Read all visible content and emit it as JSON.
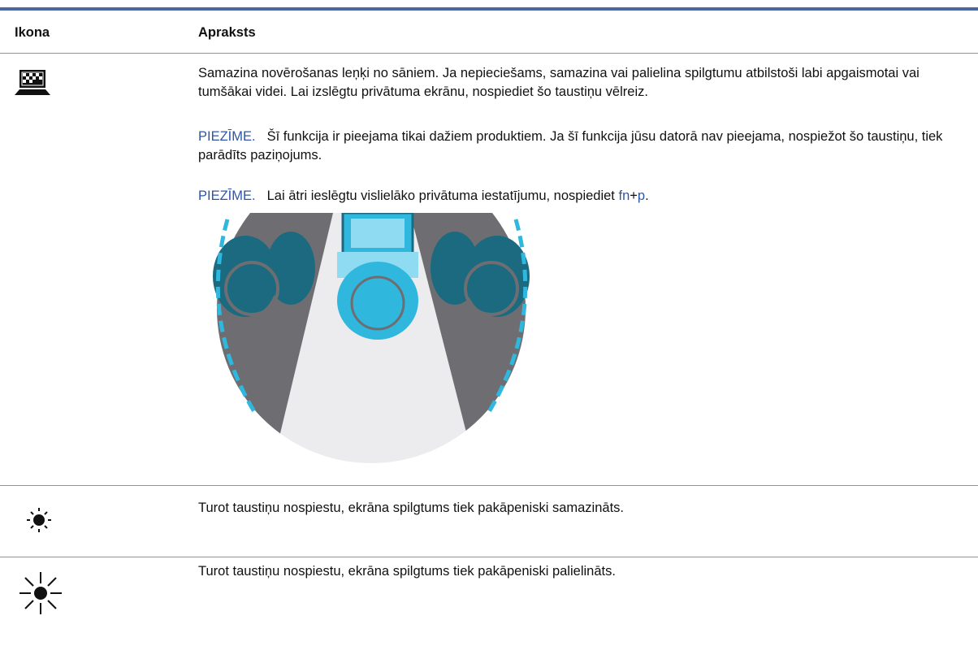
{
  "table": {
    "headers": [
      "Ikona",
      "Apraksts"
    ],
    "rows": [
      {
        "text": "Samazina novērošanas leņķi no sāniem. Ja nepieciešams, samazina vai palielina spilgtumu atbilstoši labi apgaismotai vai tumšākai videi. Lai izslēgtu privātuma ekrānu, nospiediet šo taustiņu vēlreiz.",
        "notes": [
          {
            "label": "PIEZĪME.",
            "text": "Šī funkcija ir pieejama tikai dažiem produktiem. Ja šī funkcija jūsu datorā nav pieejama, nospiežot šo taustiņu, tiek parādīts paziņojums."
          },
          {
            "label": "PIEZĪME.",
            "text": "Lai ātri ieslēgtu vislielāko privātuma iestatījumu, nospiediet ",
            "key1": "fn",
            "plus": "+",
            "key2": "p",
            "end": "."
          }
        ]
      },
      {
        "text": "Turot taustiņu nospiestu, ekrāna spilgtums tiek pakāpeniski samazināts."
      },
      {
        "text": "Turot taustiņu nospiestu, ekrāna spilgtums tiek pakāpeniski palielināts."
      }
    ]
  }
}
